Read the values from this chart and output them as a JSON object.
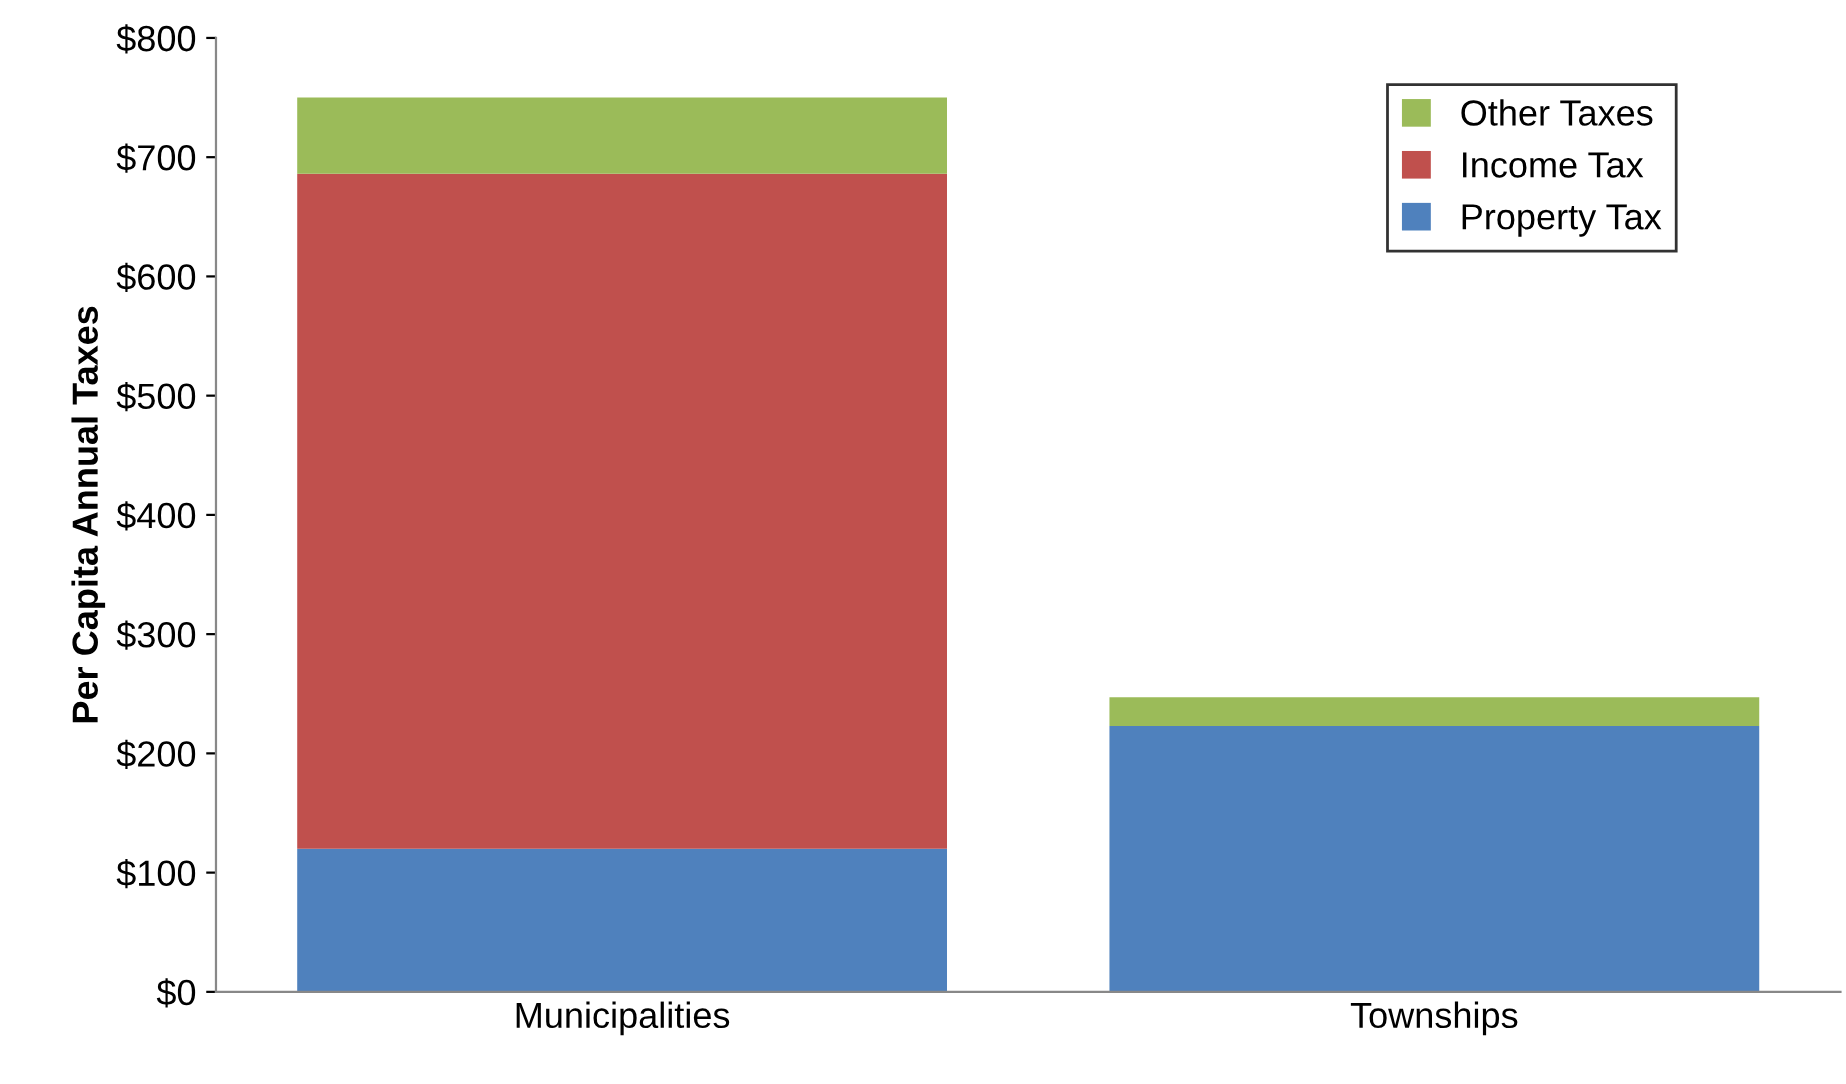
{
  "chart_data": {
    "type": "bar",
    "stacked": true,
    "ylabel": "Per Capita Annual Taxes",
    "categories": [
      "Municipalities",
      "Townships"
    ],
    "series": [
      {
        "name": "Property Tax",
        "color": "#4f81bd",
        "values": [
          120,
          223
        ]
      },
      {
        "name": "Income Tax",
        "color": "#c0504d",
        "values": [
          566,
          0
        ]
      },
      {
        "name": "Other Taxes",
        "color": "#9bbb59",
        "values": [
          64,
          24
        ]
      }
    ],
    "ylim": [
      0,
      800
    ],
    "yticks": [
      {
        "value": 0,
        "label": "$0"
      },
      {
        "value": 100,
        "label": "$100"
      },
      {
        "value": 200,
        "label": "$200"
      },
      {
        "value": 300,
        "label": "$300"
      },
      {
        "value": 400,
        "label": "$400"
      },
      {
        "value": 500,
        "label": "$500"
      },
      {
        "value": 600,
        "label": "$600"
      },
      {
        "value": 700,
        "label": "$700"
      },
      {
        "value": 800,
        "label": "$800"
      }
    ],
    "grid": false,
    "legend": "top right"
  }
}
